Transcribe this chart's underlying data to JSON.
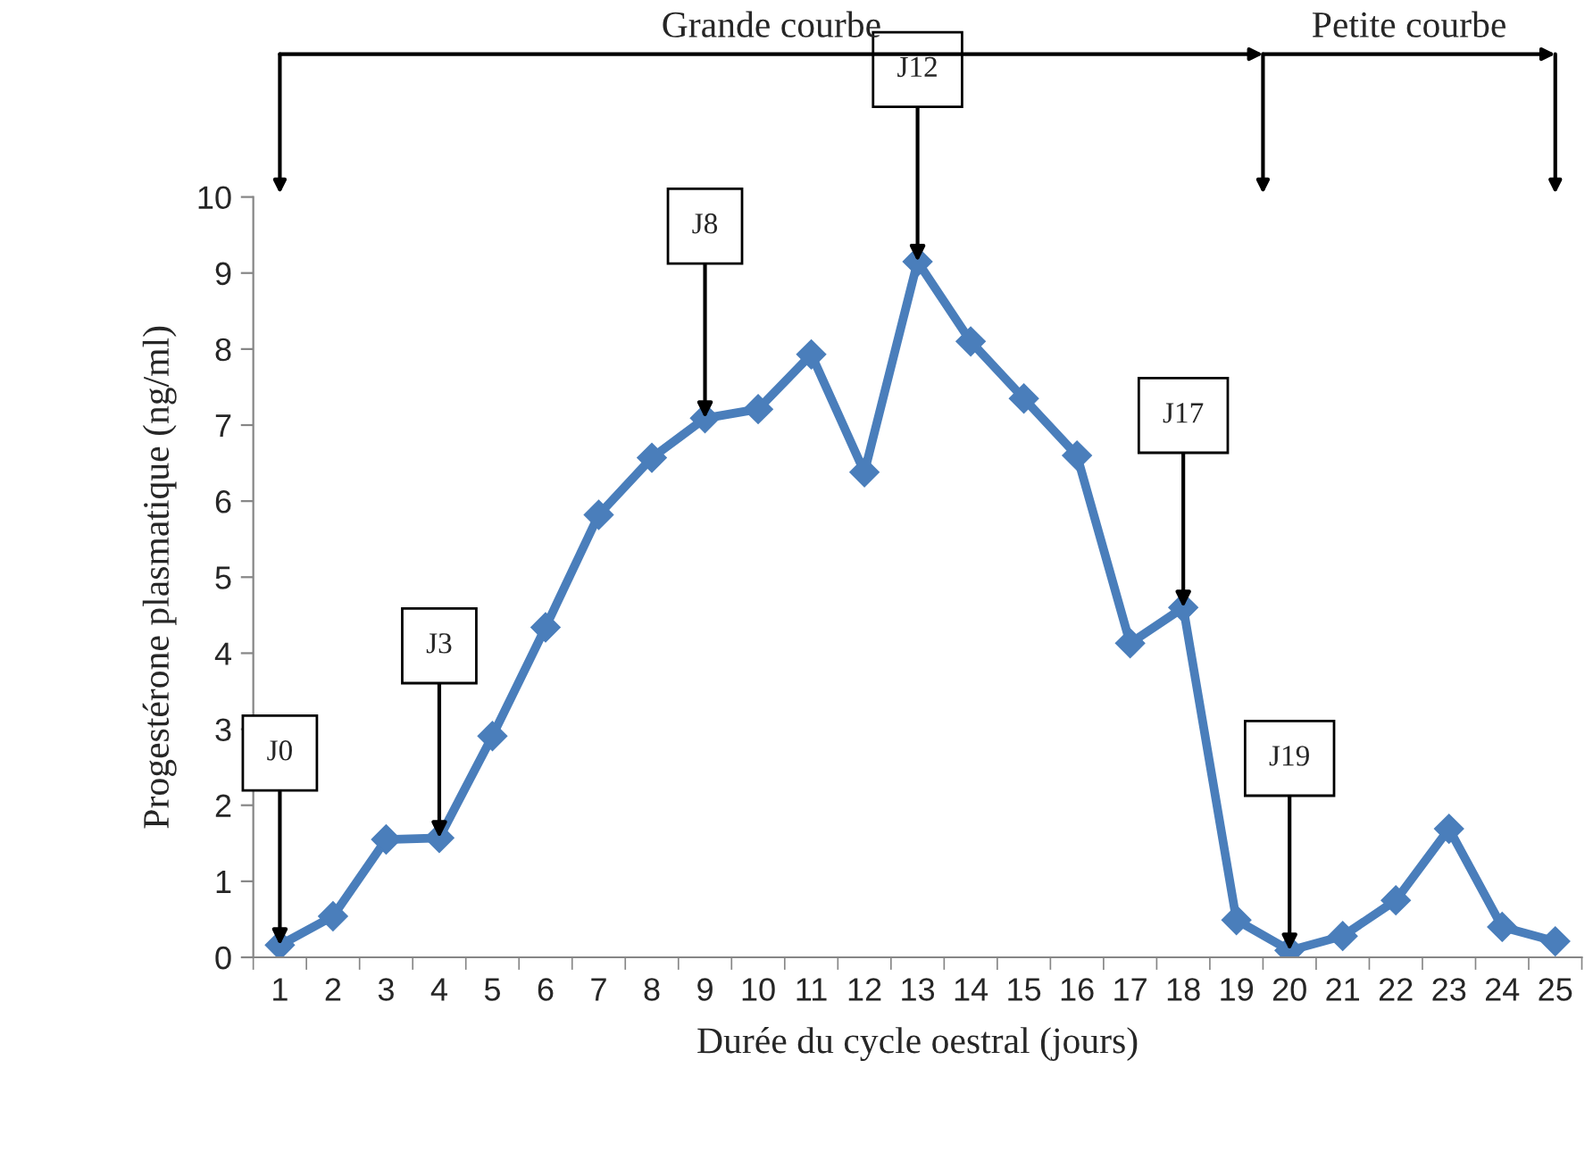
{
  "chart_data": {
    "type": "line",
    "xlabel": "Durée du cycle oestral (jours)",
    "ylabel": "Progestérone plasmatique (ng/ml)",
    "categories": [
      "1",
      "2",
      "3",
      "4",
      "5",
      "6",
      "7",
      "8",
      "9",
      "10",
      "11",
      "12",
      "13",
      "14",
      "15",
      "16",
      "17",
      "18",
      "19",
      "20",
      "21",
      "22",
      "23",
      "24",
      "25"
    ],
    "series": [
      {
        "color": "#4a7ebb",
        "values": [
          0.16,
          0.54,
          1.55,
          1.57,
          2.91,
          4.34,
          5.82,
          6.57,
          7.09,
          7.21,
          7.93,
          6.38,
          9.15,
          8.1,
          7.35,
          6.6,
          4.13,
          4.6,
          0.49,
          0.09,
          0.28,
          0.75,
          1.69,
          0.4,
          0.21
        ]
      }
    ],
    "ylim": [
      0,
      10
    ],
    "yticks": [
      0,
      1,
      2,
      3,
      4,
      5,
      6,
      7,
      8,
      9,
      10
    ],
    "marker": "diamond",
    "line_style": "solid",
    "grid": false,
    "legend": false,
    "annotations": [
      {
        "text": "J0",
        "x": "1",
        "y": 0.16
      },
      {
        "text": "J3",
        "x": "4",
        "y": 1.57
      },
      {
        "text": "J8",
        "x": "9",
        "y": 7.09
      },
      {
        "text": "J12",
        "x": "13",
        "y": 9.15
      },
      {
        "text": "J17",
        "x": "18",
        "y": 4.6
      },
      {
        "text": "J19",
        "x": "20",
        "y": 0.09
      },
      "Grande courbe",
      "Petite courbe"
    ]
  }
}
